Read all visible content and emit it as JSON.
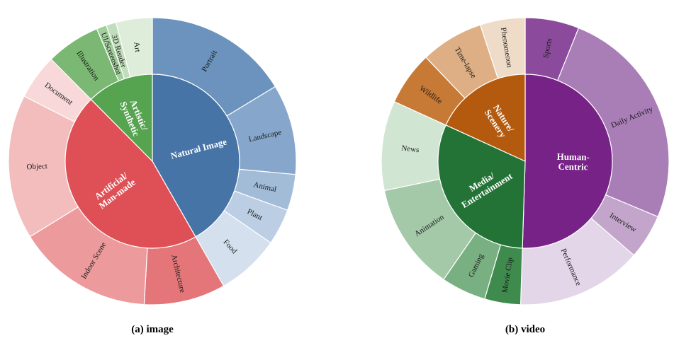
{
  "chart_data": [
    {
      "type": "sunburst",
      "caption": "(a) image",
      "categories": [
        {
          "name": "Natural Image",
          "color": "#4774A6",
          "children": [
            {
              "name": "Portrait",
              "value": 16,
              "color": "#6B93BD"
            },
            {
              "name": "Landscape",
              "value": 10,
              "color": "#86A7CB"
            },
            {
              "name": "Animal",
              "value": 4,
              "color": "#A2BCD8"
            },
            {
              "name": "Plant",
              "value": 4,
              "color": "#BBCEE3"
            },
            {
              "name": "Food",
              "value": 7,
              "color": "#D4E0EE"
            }
          ]
        },
        {
          "name": "Artificial/\nMan-made",
          "color": "#DE5055",
          "children": [
            {
              "name": "Architecture",
              "value": 9,
              "color": "#E47578"
            },
            {
              "name": "Indoor Scene",
              "value": 15,
              "color": "#EC9A9C"
            },
            {
              "name": "Object",
              "value": 16,
              "color": "#F3BDBE"
            },
            {
              "name": "Document",
              "value": 5,
              "color": "#F8D8D9"
            }
          ]
        },
        {
          "name": "Artistic/\nSynthetic",
          "color": "#56A350",
          "children": [
            {
              "name": "Illustration",
              "value": 6,
              "color": "#7AB873"
            },
            {
              "name": "UI/Screenshot",
              "value": 1.1,
              "color": "#A2CE9C"
            },
            {
              "name": "3D Render",
              "value": 1.1,
              "color": "#C1DEBC"
            },
            {
              "name": "Art",
              "value": 4,
              "color": "#DDEDDA"
            }
          ]
        }
      ]
    },
    {
      "type": "sunburst",
      "caption": "(b) video",
      "categories": [
        {
          "name": "Human-\nCentric",
          "color": "#772287",
          "children": [
            {
              "name": "Sports",
              "value": 6,
              "color": "#8C4A9C"
            },
            {
              "name": "Daily Activity",
              "value": 25,
              "color": "#A97DB6"
            },
            {
              "name": "Interview",
              "value": 5,
              "color": "#C3A5CC"
            },
            {
              "name": "Performance",
              "value": 14,
              "color": "#E3D6E8"
            }
          ]
        },
        {
          "name": "Media/\nEntertainment",
          "color": "#227335",
          "children": [
            {
              "name": "Movie Clip",
              "value": 4,
              "color": "#3F8B4E"
            },
            {
              "name": "Gaming",
              "value": 5,
              "color": "#79B081"
            },
            {
              "name": "Animation",
              "value": 12,
              "color": "#A4C9A9"
            },
            {
              "name": "News",
              "value": 10,
              "color": "#D1E5D3"
            }
          ]
        },
        {
          "name": "Nature/\nScenery",
          "color": "#B45A0E",
          "children": [
            {
              "name": "Wildlife",
              "value": 6,
              "color": "#C77A36"
            },
            {
              "name": "Time-lapse",
              "value": 7,
              "color": "#DEAF84"
            },
            {
              "name": "Phenomenon",
              "value": 5,
              "color": "#EEDCC8"
            }
          ]
        }
      ]
    }
  ]
}
